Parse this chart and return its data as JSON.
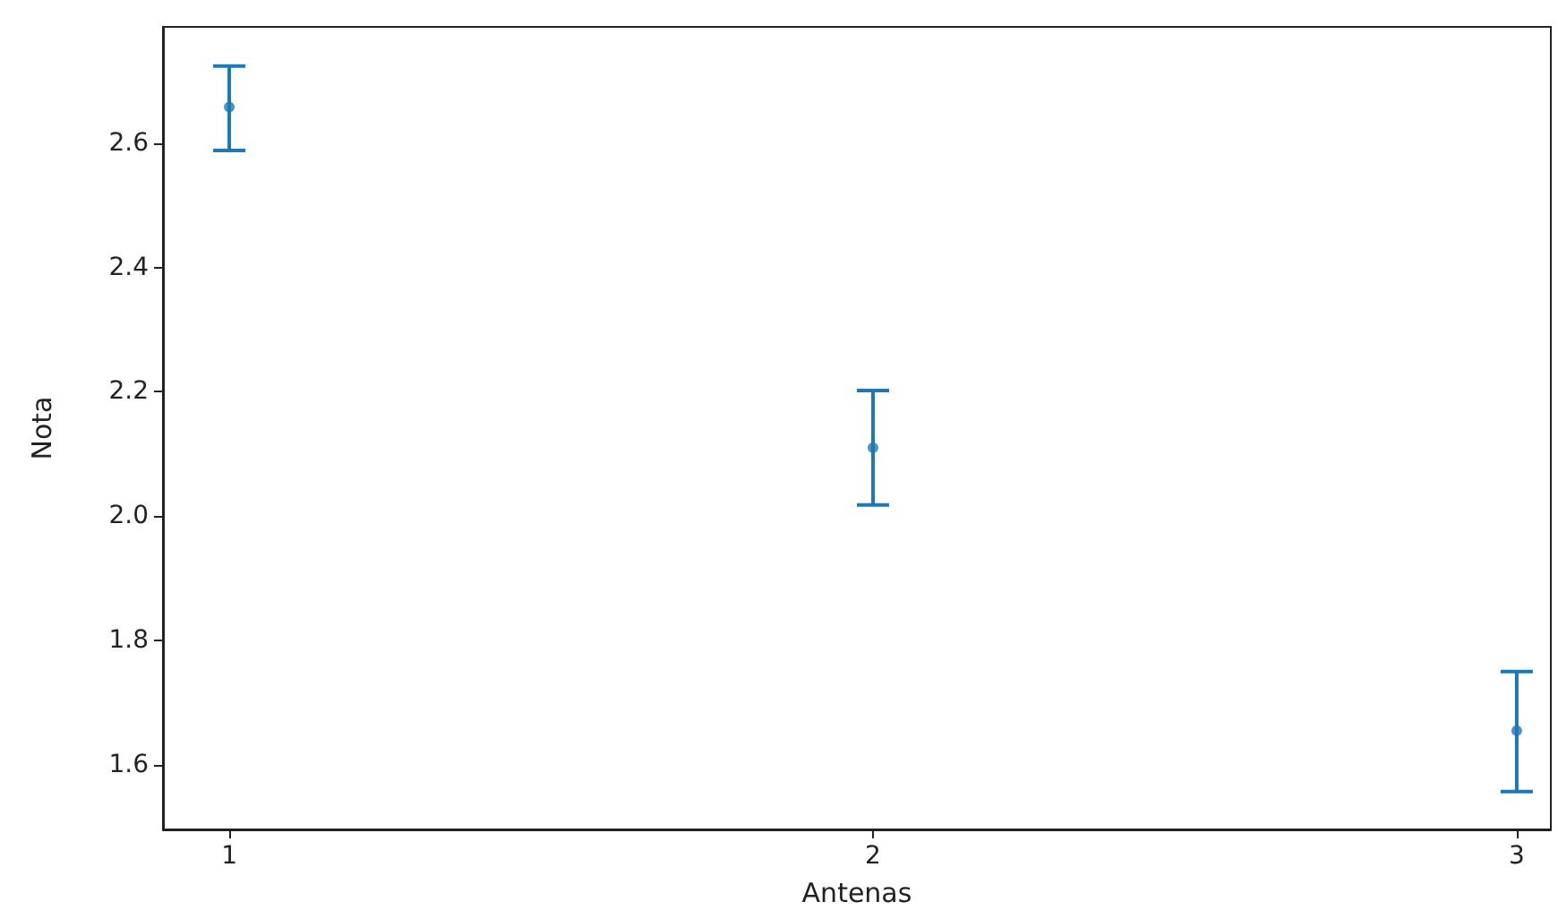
{
  "chart_data": {
    "type": "scatter",
    "xlabel": "Antenas",
    "ylabel": "Nota",
    "x": [
      1,
      2,
      3
    ],
    "values": [
      2.658,
      2.11,
      1.655
    ],
    "errors": [
      [
        2.588,
        2.724
      ],
      [
        2.018,
        2.202
      ],
      [
        1.557,
        1.75
      ]
    ],
    "color": "#1f77b4",
    "marker": "circle",
    "grid": false,
    "xlim": [
      0.897,
      3.053
    ],
    "xticks": [
      1,
      2,
      3
    ],
    "ylim": [
      1.496,
      2.787
    ],
    "yticks": [
      {
        "value": 1.6,
        "label": "1.6"
      },
      {
        "value": 1.8,
        "label": "1.8"
      },
      {
        "value": 2,
        "label": "2.0"
      },
      {
        "value": 2.2,
        "label": "2.2"
      },
      {
        "value": 2.4,
        "label": "2.4"
      },
      {
        "value": 2.6,
        "label": "2.6"
      }
    ]
  }
}
